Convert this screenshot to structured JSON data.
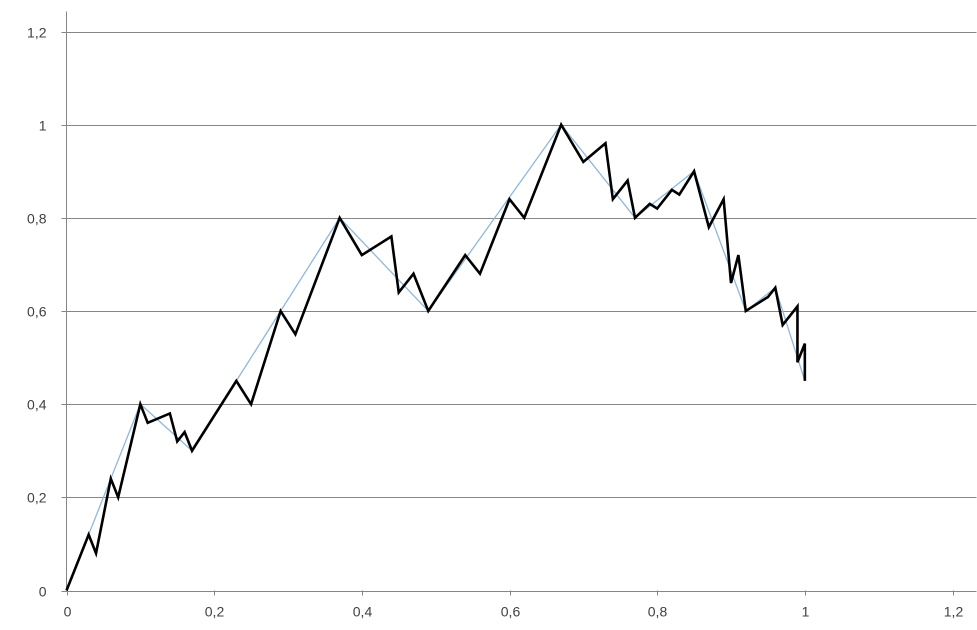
{
  "chart_data": {
    "type": "line",
    "title": "",
    "xlabel": "",
    "ylabel": "",
    "xlim": [
      0,
      1.2
    ],
    "ylim": [
      0,
      1.2
    ],
    "x_ticks": [
      0,
      0.2,
      0.4,
      0.6,
      0.8,
      1,
      1.2
    ],
    "y_ticks": [
      0,
      0.2,
      0.4,
      0.6,
      0.8,
      1,
      1.2
    ],
    "x_tick_labels": [
      "0",
      "0,2",
      "0,4",
      "0,6",
      "0,8",
      "1",
      "1,2"
    ],
    "y_tick_labels": [
      "0",
      "0,2",
      "0,4",
      "0,6",
      "0,8",
      "1",
      "1,2"
    ],
    "grid": "horizontal",
    "legend": "none",
    "series": [
      {
        "color": "#000000",
        "points": [
          [
            0,
            0
          ],
          [
            0.03,
            0.12
          ],
          [
            0.04,
            0.08
          ],
          [
            0.06,
            0.24
          ],
          [
            0.07,
            0.2
          ],
          [
            0.1,
            0.4
          ],
          [
            0.11,
            0.36
          ],
          [
            0.14,
            0.38
          ],
          [
            0.15,
            0.32
          ],
          [
            0.16,
            0.34
          ],
          [
            0.17,
            0.3
          ],
          [
            0.23,
            0.45
          ],
          [
            0.25,
            0.4
          ],
          [
            0.29,
            0.6
          ],
          [
            0.31,
            0.55
          ],
          [
            0.37,
            0.8
          ],
          [
            0.4,
            0.72
          ],
          [
            0.44,
            0.76
          ],
          [
            0.45,
            0.64
          ],
          [
            0.47,
            0.68
          ],
          [
            0.49,
            0.6
          ],
          [
            0.54,
            0.72
          ],
          [
            0.56,
            0.68
          ],
          [
            0.6,
            0.84
          ],
          [
            0.62,
            0.8
          ],
          [
            0.67,
            1.0
          ],
          [
            0.7,
            0.92
          ],
          [
            0.73,
            0.96
          ],
          [
            0.74,
            0.84
          ],
          [
            0.76,
            0.88
          ],
          [
            0.77,
            0.8
          ],
          [
            0.79,
            0.83
          ],
          [
            0.8,
            0.82
          ],
          [
            0.82,
            0.86
          ],
          [
            0.83,
            0.85
          ],
          [
            0.85,
            0.9
          ],
          [
            0.87,
            0.78
          ],
          [
            0.89,
            0.84
          ],
          [
            0.9,
            0.66
          ],
          [
            0.91,
            0.72
          ],
          [
            0.92,
            0.6
          ],
          [
            0.94,
            0.62
          ],
          [
            0.95,
            0.63
          ],
          [
            0.96,
            0.65
          ],
          [
            0.97,
            0.57
          ],
          [
            0.99,
            0.61
          ],
          [
            0.99,
            0.49
          ],
          [
            1.0,
            0.53
          ],
          [
            1.0,
            0.45
          ]
        ]
      },
      {
        "color": "#8fb8de",
        "points": [
          [
            0,
            0
          ],
          [
            0.1,
            0.4
          ],
          [
            0.17,
            0.3
          ],
          [
            0.23,
            0.45
          ],
          [
            0.37,
            0.8
          ],
          [
            0.49,
            0.6
          ],
          [
            0.67,
            1.0
          ],
          [
            0.77,
            0.8
          ],
          [
            0.85,
            0.9
          ],
          [
            0.92,
            0.6
          ],
          [
            0.96,
            0.65
          ],
          [
            1.0,
            0.45
          ]
        ]
      }
    ]
  }
}
